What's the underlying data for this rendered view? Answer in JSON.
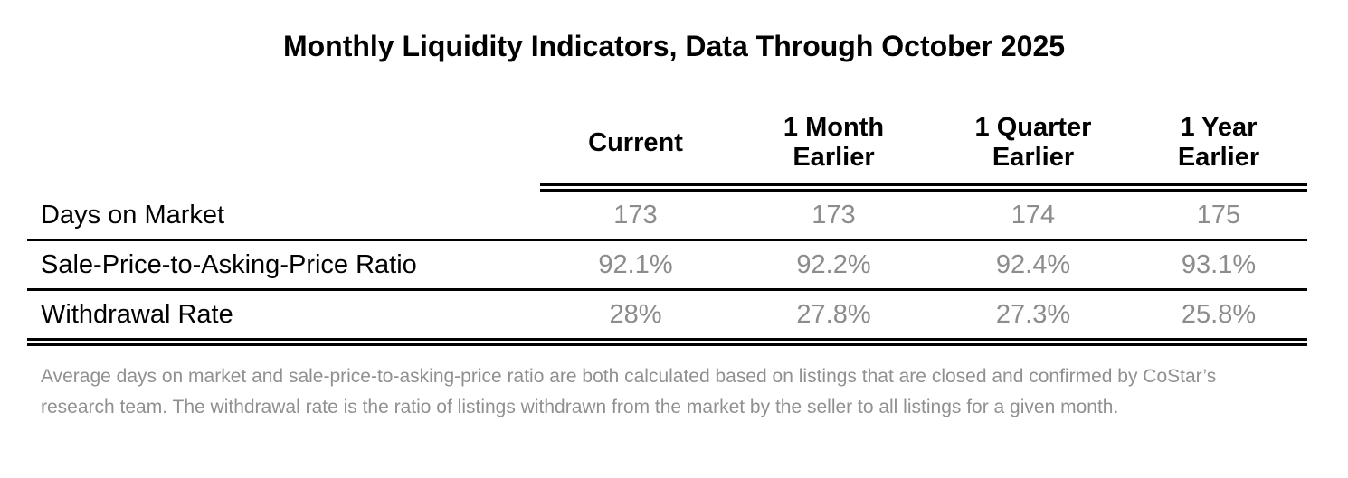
{
  "chart_data": {
    "type": "table",
    "title": "Monthly Liquidity Indicators, Data Through October 2025",
    "columns": [
      "Current",
      "1 Month\nEarlier",
      "1 Quarter\nEarlier",
      "1 Year\nEarlier"
    ],
    "rows": [
      {
        "label": "Days on Market",
        "values": [
          "173",
          "173",
          "174",
          "175"
        ]
      },
      {
        "label": "Sale-Price-to-Asking-Price Ratio",
        "values": [
          "92.1%",
          "92.2%",
          "92.4%",
          "93.1%"
        ]
      },
      {
        "label": "Withdrawal Rate",
        "values": [
          "28%",
          "27.8%",
          "27.3%",
          "25.8%"
        ]
      }
    ]
  },
  "footnote_lines": [
    "Average days on market and sale-price-to-asking-price ratio are both calculated based on listings that are closed and confirmed by CoStar’s",
    "research team. The withdrawal rate is the ratio of listings withdrawn from the market by the seller to all listings for a given month."
  ],
  "colors": {
    "title_text": "#000000",
    "row_label_text": "#000000",
    "value_text": "#8c8c8c",
    "footnote_text": "#909090",
    "rule_line": "#000000",
    "background": "#ffffff"
  }
}
